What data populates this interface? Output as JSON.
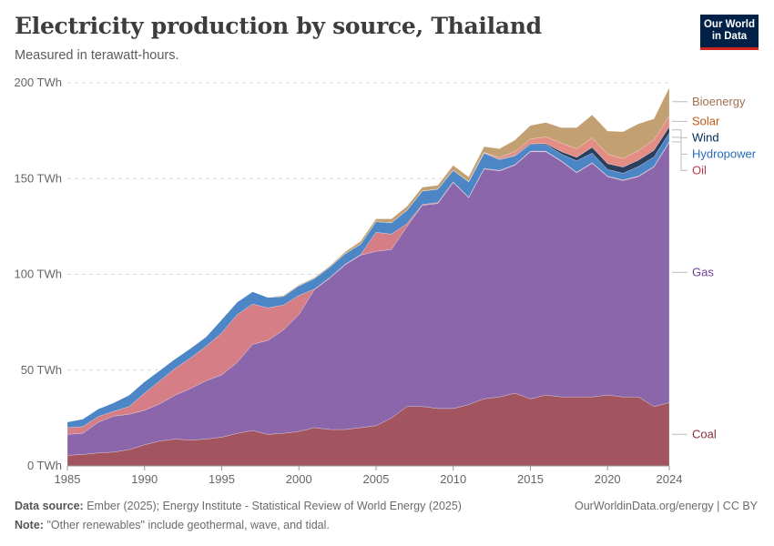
{
  "header": {
    "title": "Electricity production by source, Thailand",
    "subtitle": "Measured in terawatt-hours."
  },
  "logo": {
    "line1": "Our World",
    "line2": "in Data"
  },
  "footer": {
    "source_label": "Data source:",
    "source_text": "Ember (2025); Energy Institute - Statistical Review of World Energy (2025)",
    "note_label": "Note:",
    "note_text": "\"Other renewables\" include geothermal, wave, and tidal.",
    "credit": "OurWorldinData.org/energy | CC BY"
  },
  "chart_data": {
    "type": "area",
    "stacked": true,
    "title": "Electricity production by source, Thailand",
    "subtitle": "Measured in terawatt-hours.",
    "unit": "TWh",
    "ylim": [
      0,
      200
    ],
    "y_ticks": [
      0,
      50,
      100,
      150,
      200
    ],
    "y_tick_labels": [
      "0 TWh",
      "50 TWh",
      "100 TWh",
      "150 TWh",
      "200 TWh"
    ],
    "x_ticks": [
      1985,
      1990,
      1995,
      2000,
      2005,
      2010,
      2015,
      2020,
      2024
    ],
    "x": [
      1985,
      1986,
      1987,
      1988,
      1989,
      1990,
      1991,
      1992,
      1993,
      1994,
      1995,
      1996,
      1997,
      1998,
      1999,
      2000,
      2001,
      2002,
      2003,
      2004,
      2005,
      2006,
      2007,
      2008,
      2009,
      2010,
      2011,
      2012,
      2013,
      2014,
      2015,
      2016,
      2017,
      2018,
      2019,
      2020,
      2021,
      2022,
      2023,
      2024
    ],
    "series": [
      {
        "name": "Coal",
        "color": "#a2555f",
        "label_color": "#883039",
        "values": [
          5.5,
          6,
          6.8,
          7.2,
          8.5,
          11,
          13,
          14,
          13.5,
          14,
          15,
          17,
          18.5,
          16.5,
          17,
          18,
          20,
          19,
          19,
          20,
          21,
          25,
          31,
          31,
          30,
          30,
          32,
          35,
          36,
          38,
          35,
          37,
          36,
          36,
          36,
          37,
          36,
          36,
          31,
          33
        ]
      },
      {
        "name": "Gas",
        "color": "#8c66ab",
        "label_color": "#6d3e91",
        "values": [
          11,
          11,
          16,
          18.8,
          18.5,
          18,
          19.5,
          23,
          27,
          30.5,
          32.5,
          37,
          45,
          49,
          54,
          61,
          72,
          79,
          86,
          90,
          91,
          88,
          94,
          105,
          107,
          118,
          108,
          120,
          118,
          119,
          129,
          127,
          123,
          117,
          122,
          114,
          113,
          115,
          125,
          136
        ]
      },
      {
        "name": "Oil",
        "color": "#d57e85",
        "label_color": "#b13d47",
        "values": [
          3.5,
          3.5,
          3,
          2.5,
          4,
          9,
          12,
          14,
          16,
          18,
          22,
          25,
          21,
          17,
          13,
          10,
          0.3,
          0.3,
          0.3,
          0.3,
          10,
          8,
          1.5,
          0.5,
          0.5,
          0.3,
          0.3,
          0.3,
          0.3,
          0.3,
          0.3,
          0.3,
          0.3,
          0.3,
          0.3,
          0.3,
          0.3,
          0.3,
          0.3,
          0.3
        ]
      },
      {
        "name": "Hydropower",
        "color": "#4c86c6",
        "label_color": "#286bbb",
        "values": [
          3,
          4,
          4,
          4.5,
          6,
          6,
          5.5,
          5,
          5,
          5,
          7,
          6.5,
          6.5,
          5.5,
          4.5,
          5,
          5.5,
          5.5,
          5.5,
          5.5,
          5.5,
          6,
          7,
          7,
          7,
          6,
          8,
          8,
          5.5,
          4.5,
          3.5,
          3.5,
          3.5,
          6,
          5,
          3.5,
          3.5,
          5,
          5,
          4.5
        ]
      },
      {
        "name": "Wind",
        "color": "#2c3e5e",
        "label_color": "#00295b",
        "values": [
          0,
          0,
          0,
          0,
          0,
          0,
          0,
          0,
          0,
          0,
          0,
          0,
          0,
          0,
          0,
          0,
          0,
          0,
          0,
          0,
          0,
          0,
          0,
          0,
          0,
          0,
          0,
          0.1,
          0.3,
          0.3,
          0.4,
          0.5,
          1.3,
          1.8,
          3,
          3,
          3.2,
          3.3,
          3.4,
          3.3
        ]
      },
      {
        "name": "Solar",
        "color": "#e48d84",
        "label_color": "#c05917",
        "values": [
          0,
          0,
          0,
          0,
          0,
          0,
          0,
          0,
          0,
          0,
          0,
          0,
          0,
          0,
          0,
          0,
          0,
          0,
          0,
          0,
          0,
          0,
          0,
          0,
          0,
          0.1,
          0.1,
          0.3,
          1,
          2,
          2.5,
          3.5,
          4.5,
          4.5,
          5,
          5,
          4.5,
          5,
          5.5,
          5.5
        ]
      },
      {
        "name": "Bioenergy",
        "color": "#c3a071",
        "label_color": "#a2704d",
        "values": [
          0,
          0,
          0,
          0,
          0,
          0,
          0,
          0,
          0,
          0,
          0,
          0,
          0,
          0,
          0.5,
          0.5,
          0.5,
          0.5,
          1,
          1.5,
          1.5,
          2,
          2,
          2,
          2,
          2.5,
          2.5,
          3,
          4.5,
          6,
          7,
          7.5,
          8,
          11,
          12,
          12,
          14,
          14,
          11,
          15
        ]
      }
    ],
    "legend_placement": "right",
    "grid": true
  }
}
